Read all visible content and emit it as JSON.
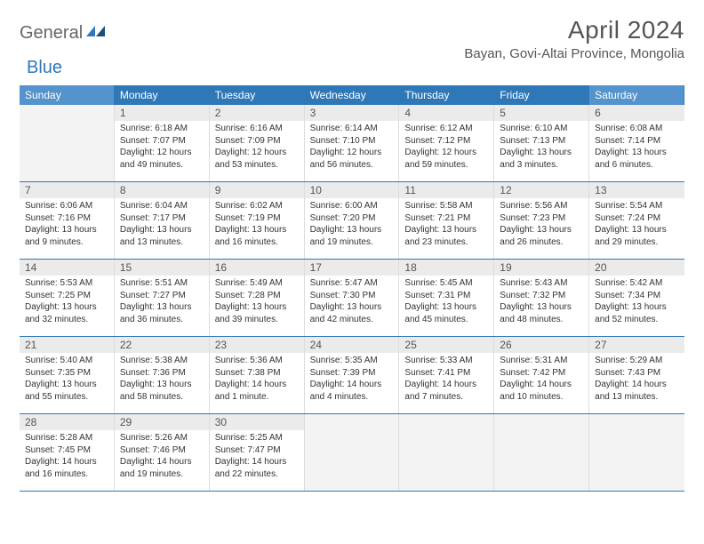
{
  "logo": {
    "part1": "General",
    "part2": "Blue"
  },
  "title": "April 2024",
  "location": "Bayan, Govi-Altai Province, Mongolia",
  "colors": {
    "header_bg": "#2f78b8",
    "weekend_bg": "#5493cb",
    "daynum_bg": "#ebebeb",
    "empty_bg": "#f3f3f3",
    "rule": "#2f78b8"
  },
  "weekdays": [
    "Sunday",
    "Monday",
    "Tuesday",
    "Wednesday",
    "Thursday",
    "Friday",
    "Saturday"
  ],
  "weeks": [
    [
      {
        "empty": true
      },
      {
        "n": "1",
        "sr": "6:18 AM",
        "ss": "7:07 PM",
        "dl": "12 hours and 49 minutes."
      },
      {
        "n": "2",
        "sr": "6:16 AM",
        "ss": "7:09 PM",
        "dl": "12 hours and 53 minutes."
      },
      {
        "n": "3",
        "sr": "6:14 AM",
        "ss": "7:10 PM",
        "dl": "12 hours and 56 minutes."
      },
      {
        "n": "4",
        "sr": "6:12 AM",
        "ss": "7:12 PM",
        "dl": "12 hours and 59 minutes."
      },
      {
        "n": "5",
        "sr": "6:10 AM",
        "ss": "7:13 PM",
        "dl": "13 hours and 3 minutes."
      },
      {
        "n": "6",
        "sr": "6:08 AM",
        "ss": "7:14 PM",
        "dl": "13 hours and 6 minutes."
      }
    ],
    [
      {
        "n": "7",
        "sr": "6:06 AM",
        "ss": "7:16 PM",
        "dl": "13 hours and 9 minutes."
      },
      {
        "n": "8",
        "sr": "6:04 AM",
        "ss": "7:17 PM",
        "dl": "13 hours and 13 minutes."
      },
      {
        "n": "9",
        "sr": "6:02 AM",
        "ss": "7:19 PM",
        "dl": "13 hours and 16 minutes."
      },
      {
        "n": "10",
        "sr": "6:00 AM",
        "ss": "7:20 PM",
        "dl": "13 hours and 19 minutes."
      },
      {
        "n": "11",
        "sr": "5:58 AM",
        "ss": "7:21 PM",
        "dl": "13 hours and 23 minutes."
      },
      {
        "n": "12",
        "sr": "5:56 AM",
        "ss": "7:23 PM",
        "dl": "13 hours and 26 minutes."
      },
      {
        "n": "13",
        "sr": "5:54 AM",
        "ss": "7:24 PM",
        "dl": "13 hours and 29 minutes."
      }
    ],
    [
      {
        "n": "14",
        "sr": "5:53 AM",
        "ss": "7:25 PM",
        "dl": "13 hours and 32 minutes."
      },
      {
        "n": "15",
        "sr": "5:51 AM",
        "ss": "7:27 PM",
        "dl": "13 hours and 36 minutes."
      },
      {
        "n": "16",
        "sr": "5:49 AM",
        "ss": "7:28 PM",
        "dl": "13 hours and 39 minutes."
      },
      {
        "n": "17",
        "sr": "5:47 AM",
        "ss": "7:30 PM",
        "dl": "13 hours and 42 minutes."
      },
      {
        "n": "18",
        "sr": "5:45 AM",
        "ss": "7:31 PM",
        "dl": "13 hours and 45 minutes."
      },
      {
        "n": "19",
        "sr": "5:43 AM",
        "ss": "7:32 PM",
        "dl": "13 hours and 48 minutes."
      },
      {
        "n": "20",
        "sr": "5:42 AM",
        "ss": "7:34 PM",
        "dl": "13 hours and 52 minutes."
      }
    ],
    [
      {
        "n": "21",
        "sr": "5:40 AM",
        "ss": "7:35 PM",
        "dl": "13 hours and 55 minutes."
      },
      {
        "n": "22",
        "sr": "5:38 AM",
        "ss": "7:36 PM",
        "dl": "13 hours and 58 minutes."
      },
      {
        "n": "23",
        "sr": "5:36 AM",
        "ss": "7:38 PM",
        "dl": "14 hours and 1 minute."
      },
      {
        "n": "24",
        "sr": "5:35 AM",
        "ss": "7:39 PM",
        "dl": "14 hours and 4 minutes."
      },
      {
        "n": "25",
        "sr": "5:33 AM",
        "ss": "7:41 PM",
        "dl": "14 hours and 7 minutes."
      },
      {
        "n": "26",
        "sr": "5:31 AM",
        "ss": "7:42 PM",
        "dl": "14 hours and 10 minutes."
      },
      {
        "n": "27",
        "sr": "5:29 AM",
        "ss": "7:43 PM",
        "dl": "14 hours and 13 minutes."
      }
    ],
    [
      {
        "n": "28",
        "sr": "5:28 AM",
        "ss": "7:45 PM",
        "dl": "14 hours and 16 minutes."
      },
      {
        "n": "29",
        "sr": "5:26 AM",
        "ss": "7:46 PM",
        "dl": "14 hours and 19 minutes."
      },
      {
        "n": "30",
        "sr": "5:25 AM",
        "ss": "7:47 PM",
        "dl": "14 hours and 22 minutes."
      },
      {
        "empty": true
      },
      {
        "empty": true
      },
      {
        "empty": true
      },
      {
        "empty": true
      }
    ]
  ],
  "labels": {
    "sunrise": "Sunrise:",
    "sunset": "Sunset:",
    "daylight": "Daylight:"
  }
}
